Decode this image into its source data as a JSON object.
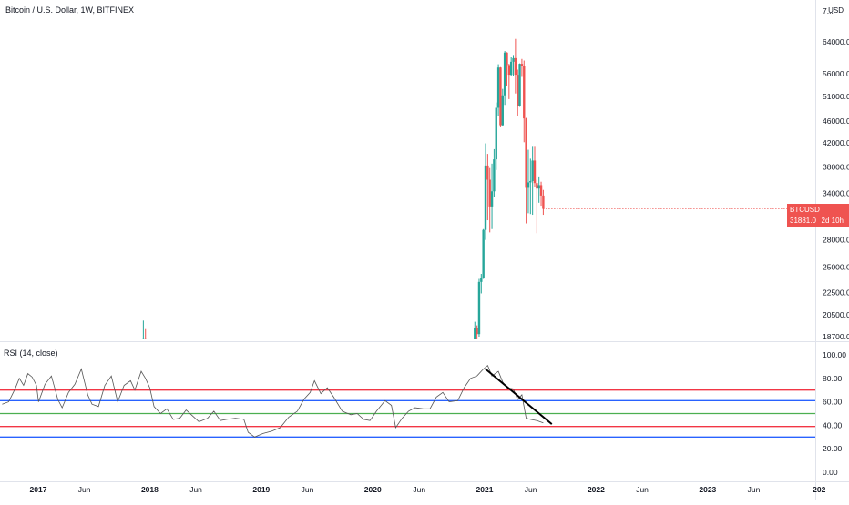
{
  "header": {
    "title": "Bitcoin / U.S. Dollar, 1W, BITFINEX",
    "currency": "USD"
  },
  "price_tag": {
    "label": "BTCUSD · 31881.0",
    "countdown": "2d 10h"
  },
  "colors": {
    "up": "#26a69a",
    "down": "#ef5350",
    "rsi_line": "#555555",
    "level_red": "#f23645",
    "level_blue": "#2962ff",
    "level_green": "#4caf50",
    "trendline": "#000000"
  },
  "chart_data": [
    {
      "type": "candlestick",
      "title": "Bitcoin / U.S. Dollar, 1W, BITFINEX",
      "scale": "log",
      "y_ticks": [
        "7...",
        "64000.0",
        "56000.0",
        "51000.0",
        "46000.0",
        "42000.0",
        "38000.0",
        "34000.0",
        "28000.0",
        "25000.0",
        "22500.0",
        "20500.0",
        "18700.0"
      ],
      "y_tick_values": [
        72000,
        64000,
        56000,
        51000,
        46000,
        42000,
        38000,
        34000,
        28000,
        25000,
        22500,
        20500,
        18700
      ],
      "ylim": [
        18000,
        72000
      ],
      "last_price": 31881.0,
      "candles": [
        {
          "date": "2017-12-11",
          "open": 16800,
          "high": 20000,
          "low": 16000,
          "close": 18500
        },
        {
          "date": "2017-12-18",
          "open": 18500,
          "high": 19300,
          "low": 12500,
          "close": 14200
        },
        {
          "date": "2020-11-30",
          "open": 18200,
          "high": 19900,
          "low": 17600,
          "close": 19400
        },
        {
          "date": "2020-12-07",
          "open": 19400,
          "high": 19600,
          "low": 17650,
          "close": 18900
        },
        {
          "date": "2020-12-14",
          "open": 18900,
          "high": 23800,
          "low": 18700,
          "close": 23500
        },
        {
          "date": "2020-12-21",
          "open": 23500,
          "high": 24300,
          "low": 22400,
          "close": 23900
        },
        {
          "date": "2020-12-28",
          "open": 23900,
          "high": 29300,
          "low": 23800,
          "close": 29200
        },
        {
          "date": "2021-01-04",
          "open": 29200,
          "high": 41900,
          "low": 28000,
          "close": 38200
        },
        {
          "date": "2021-01-11",
          "open": 38200,
          "high": 40100,
          "low": 30400,
          "close": 36000
        },
        {
          "date": "2021-01-18",
          "open": 36000,
          "high": 37800,
          "low": 28900,
          "close": 32200
        },
        {
          "date": "2021-01-25",
          "open": 32200,
          "high": 38500,
          "low": 29300,
          "close": 34300
        },
        {
          "date": "2021-02-01",
          "open": 34300,
          "high": 40900,
          "low": 33500,
          "close": 39200
        },
        {
          "date": "2021-02-08",
          "open": 39200,
          "high": 49700,
          "low": 37500,
          "close": 48600
        },
        {
          "date": "2021-02-15",
          "open": 48600,
          "high": 58300,
          "low": 47000,
          "close": 57500
        },
        {
          "date": "2021-02-22",
          "open": 57500,
          "high": 57600,
          "low": 44800,
          "close": 45200
        },
        {
          "date": "2021-03-01",
          "open": 45200,
          "high": 52600,
          "low": 45000,
          "close": 51200
        },
        {
          "date": "2021-03-08",
          "open": 51200,
          "high": 61600,
          "low": 49200,
          "close": 61200
        },
        {
          "date": "2021-03-15",
          "open": 61200,
          "high": 61300,
          "low": 53300,
          "close": 58100
        },
        {
          "date": "2021-03-22",
          "open": 58100,
          "high": 58400,
          "low": 50400,
          "close": 55800
        },
        {
          "date": "2021-03-29",
          "open": 55800,
          "high": 60000,
          "low": 55400,
          "close": 58900
        },
        {
          "date": "2021-04-05",
          "open": 58900,
          "high": 60600,
          "low": 55500,
          "close": 59800
        },
        {
          "date": "2021-04-12",
          "open": 59800,
          "high": 64800,
          "low": 51600,
          "close": 55800
        },
        {
          "date": "2021-04-19",
          "open": 55800,
          "high": 57000,
          "low": 47000,
          "close": 49000
        },
        {
          "date": "2021-04-26",
          "open": 49000,
          "high": 58500,
          "low": 48800,
          "close": 58400
        },
        {
          "date": "2021-05-03",
          "open": 58400,
          "high": 59600,
          "low": 55300,
          "close": 57800
        },
        {
          "date": "2021-05-10",
          "open": 57800,
          "high": 59200,
          "low": 42100,
          "close": 46500
        },
        {
          "date": "2021-05-17",
          "open": 46500,
          "high": 46600,
          "low": 30000,
          "close": 34800
        },
        {
          "date": "2021-05-24",
          "open": 34800,
          "high": 40800,
          "low": 31300,
          "close": 35600
        },
        {
          "date": "2021-05-31",
          "open": 35600,
          "high": 39300,
          "low": 31200,
          "close": 35800
        },
        {
          "date": "2021-06-07",
          "open": 35800,
          "high": 41300,
          "low": 31100,
          "close": 39000
        },
        {
          "date": "2021-06-14",
          "open": 39000,
          "high": 41300,
          "low": 34900,
          "close": 35500
        },
        {
          "date": "2021-06-21",
          "open": 35500,
          "high": 36000,
          "low": 28800,
          "close": 34700
        },
        {
          "date": "2021-06-28",
          "open": 34700,
          "high": 36500,
          "low": 32700,
          "close": 35200
        },
        {
          "date": "2021-07-05",
          "open": 35200,
          "high": 35700,
          "low": 32300,
          "close": 33700
        },
        {
          "date": "2021-07-12",
          "open": 33700,
          "high": 34500,
          "low": 31100,
          "close": 31881
        }
      ]
    },
    {
      "type": "line",
      "title": "RSI (14, close)",
      "y_ticks": [
        "100.00",
        "80.00",
        "60.00",
        "40.00",
        "20.00",
        "0.00"
      ],
      "y_tick_values": [
        100,
        80,
        60,
        40,
        20,
        0
      ],
      "ylim": [
        -5,
        105
      ],
      "levels": [
        {
          "value": 70,
          "color": "#f23645"
        },
        {
          "value": 61,
          "color": "#2962ff"
        },
        {
          "value": 50,
          "color": "#4caf50"
        },
        {
          "value": 39,
          "color": "#f23645"
        },
        {
          "value": 30,
          "color": "#2962ff"
        }
      ],
      "trendline": [
        {
          "date": "2021-01-04",
          "value": 88
        },
        {
          "date": "2021-08-09",
          "value": 41
        }
      ],
      "series": [
        {
          "points": [
            [
              "2016-09-05",
              58
            ],
            [
              "2016-09-26",
              60
            ],
            [
              "2016-10-17",
              71
            ],
            [
              "2016-10-31",
              80
            ],
            [
              "2016-11-14",
              74
            ],
            [
              "2016-11-28",
              84
            ],
            [
              "2016-12-12",
              81
            ],
            [
              "2016-12-26",
              74
            ],
            [
              "2017-01-02",
              60
            ],
            [
              "2017-01-23",
              75
            ],
            [
              "2017-02-13",
              82
            ],
            [
              "2017-03-06",
              62
            ],
            [
              "2017-03-20",
              55
            ],
            [
              "2017-04-10",
              68
            ],
            [
              "2017-05-01",
              75
            ],
            [
              "2017-05-22",
              88
            ],
            [
              "2017-06-12",
              66
            ],
            [
              "2017-06-26",
              58
            ],
            [
              "2017-07-17",
              56
            ],
            [
              "2017-08-07",
              74
            ],
            [
              "2017-08-28",
              82
            ],
            [
              "2017-09-18",
              60
            ],
            [
              "2017-10-09",
              74
            ],
            [
              "2017-10-30",
              78
            ],
            [
              "2017-11-13",
              70
            ],
            [
              "2017-12-04",
              86
            ],
            [
              "2017-12-18",
              80
            ],
            [
              "2018-01-01",
              72
            ],
            [
              "2018-01-15",
              56
            ],
            [
              "2018-02-05",
              50
            ],
            [
              "2018-02-26",
              54
            ],
            [
              "2018-03-19",
              45
            ],
            [
              "2018-04-09",
              46
            ],
            [
              "2018-04-30",
              53
            ],
            [
              "2018-05-21",
              48
            ],
            [
              "2018-06-11",
              43
            ],
            [
              "2018-07-09",
              46
            ],
            [
              "2018-07-30",
              52
            ],
            [
              "2018-08-20",
              44
            ],
            [
              "2018-09-10",
              45
            ],
            [
              "2018-10-08",
              46
            ],
            [
              "2018-11-05",
              45
            ],
            [
              "2018-11-19",
              34
            ],
            [
              "2018-12-10",
              30
            ],
            [
              "2019-01-07",
              33
            ],
            [
              "2019-02-04",
              35
            ],
            [
              "2019-03-04",
              38
            ],
            [
              "2019-04-01",
              47
            ],
            [
              "2019-04-29",
              52
            ],
            [
              "2019-05-20",
              62
            ],
            [
              "2019-06-10",
              68
            ],
            [
              "2019-06-24",
              78
            ],
            [
              "2019-07-15",
              67
            ],
            [
              "2019-08-05",
              72
            ],
            [
              "2019-08-26",
              64
            ],
            [
              "2019-09-23",
              52
            ],
            [
              "2019-10-21",
              49
            ],
            [
              "2019-11-11",
              50
            ],
            [
              "2019-12-02",
              45
            ],
            [
              "2019-12-23",
              44
            ],
            [
              "2020-01-13",
              52
            ],
            [
              "2020-02-10",
              61
            ],
            [
              "2020-03-02",
              57
            ],
            [
              "2020-03-16",
              38
            ],
            [
              "2020-04-06",
              46
            ],
            [
              "2020-04-27",
              52
            ],
            [
              "2020-05-18",
              55
            ],
            [
              "2020-06-15",
              54
            ],
            [
              "2020-07-06",
              54
            ],
            [
              "2020-07-27",
              64
            ],
            [
              "2020-08-17",
              68
            ],
            [
              "2020-09-07",
              60
            ],
            [
              "2020-10-05",
              61
            ],
            [
              "2020-10-26",
              72
            ],
            [
              "2020-11-16",
              80
            ],
            [
              "2020-12-07",
              82
            ],
            [
              "2020-12-28",
              88
            ],
            [
              "2021-01-11",
              91
            ],
            [
              "2021-01-25",
              82
            ],
            [
              "2021-02-15",
              86
            ],
            [
              "2021-03-01",
              77
            ],
            [
              "2021-03-15",
              72
            ],
            [
              "2021-04-05",
              71
            ],
            [
              "2021-04-19",
              62
            ],
            [
              "2021-05-03",
              66
            ],
            [
              "2021-05-17",
              46
            ],
            [
              "2021-05-31",
              45
            ],
            [
              "2021-06-21",
              44
            ],
            [
              "2021-07-12",
              42
            ]
          ]
        }
      ]
    }
  ],
  "x_axis": {
    "ticks": [
      {
        "label": "2017",
        "date": "2017-01-01",
        "bold": true
      },
      {
        "label": "Jun",
        "date": "2017-06-01",
        "bold": false
      },
      {
        "label": "2018",
        "date": "2018-01-01",
        "bold": true
      },
      {
        "label": "Jun",
        "date": "2018-06-01",
        "bold": false
      },
      {
        "label": "2019",
        "date": "2019-01-01",
        "bold": true
      },
      {
        "label": "Jun",
        "date": "2019-06-01",
        "bold": false
      },
      {
        "label": "2020",
        "date": "2020-01-01",
        "bold": true
      },
      {
        "label": "Jun",
        "date": "2020-06-01",
        "bold": false
      },
      {
        "label": "2021",
        "date": "2021-01-01",
        "bold": true
      },
      {
        "label": "Jun",
        "date": "2021-06-01",
        "bold": false
      },
      {
        "label": "2022",
        "date": "2022-01-01",
        "bold": true
      },
      {
        "label": "Jun",
        "date": "2022-06-01",
        "bold": false
      },
      {
        "label": "2023",
        "date": "2023-01-01",
        "bold": true
      },
      {
        "label": "Jun",
        "date": "2023-06-01",
        "bold": false
      },
      {
        "label": "202",
        "date": "2024-01-01",
        "bold": true
      }
    ]
  }
}
